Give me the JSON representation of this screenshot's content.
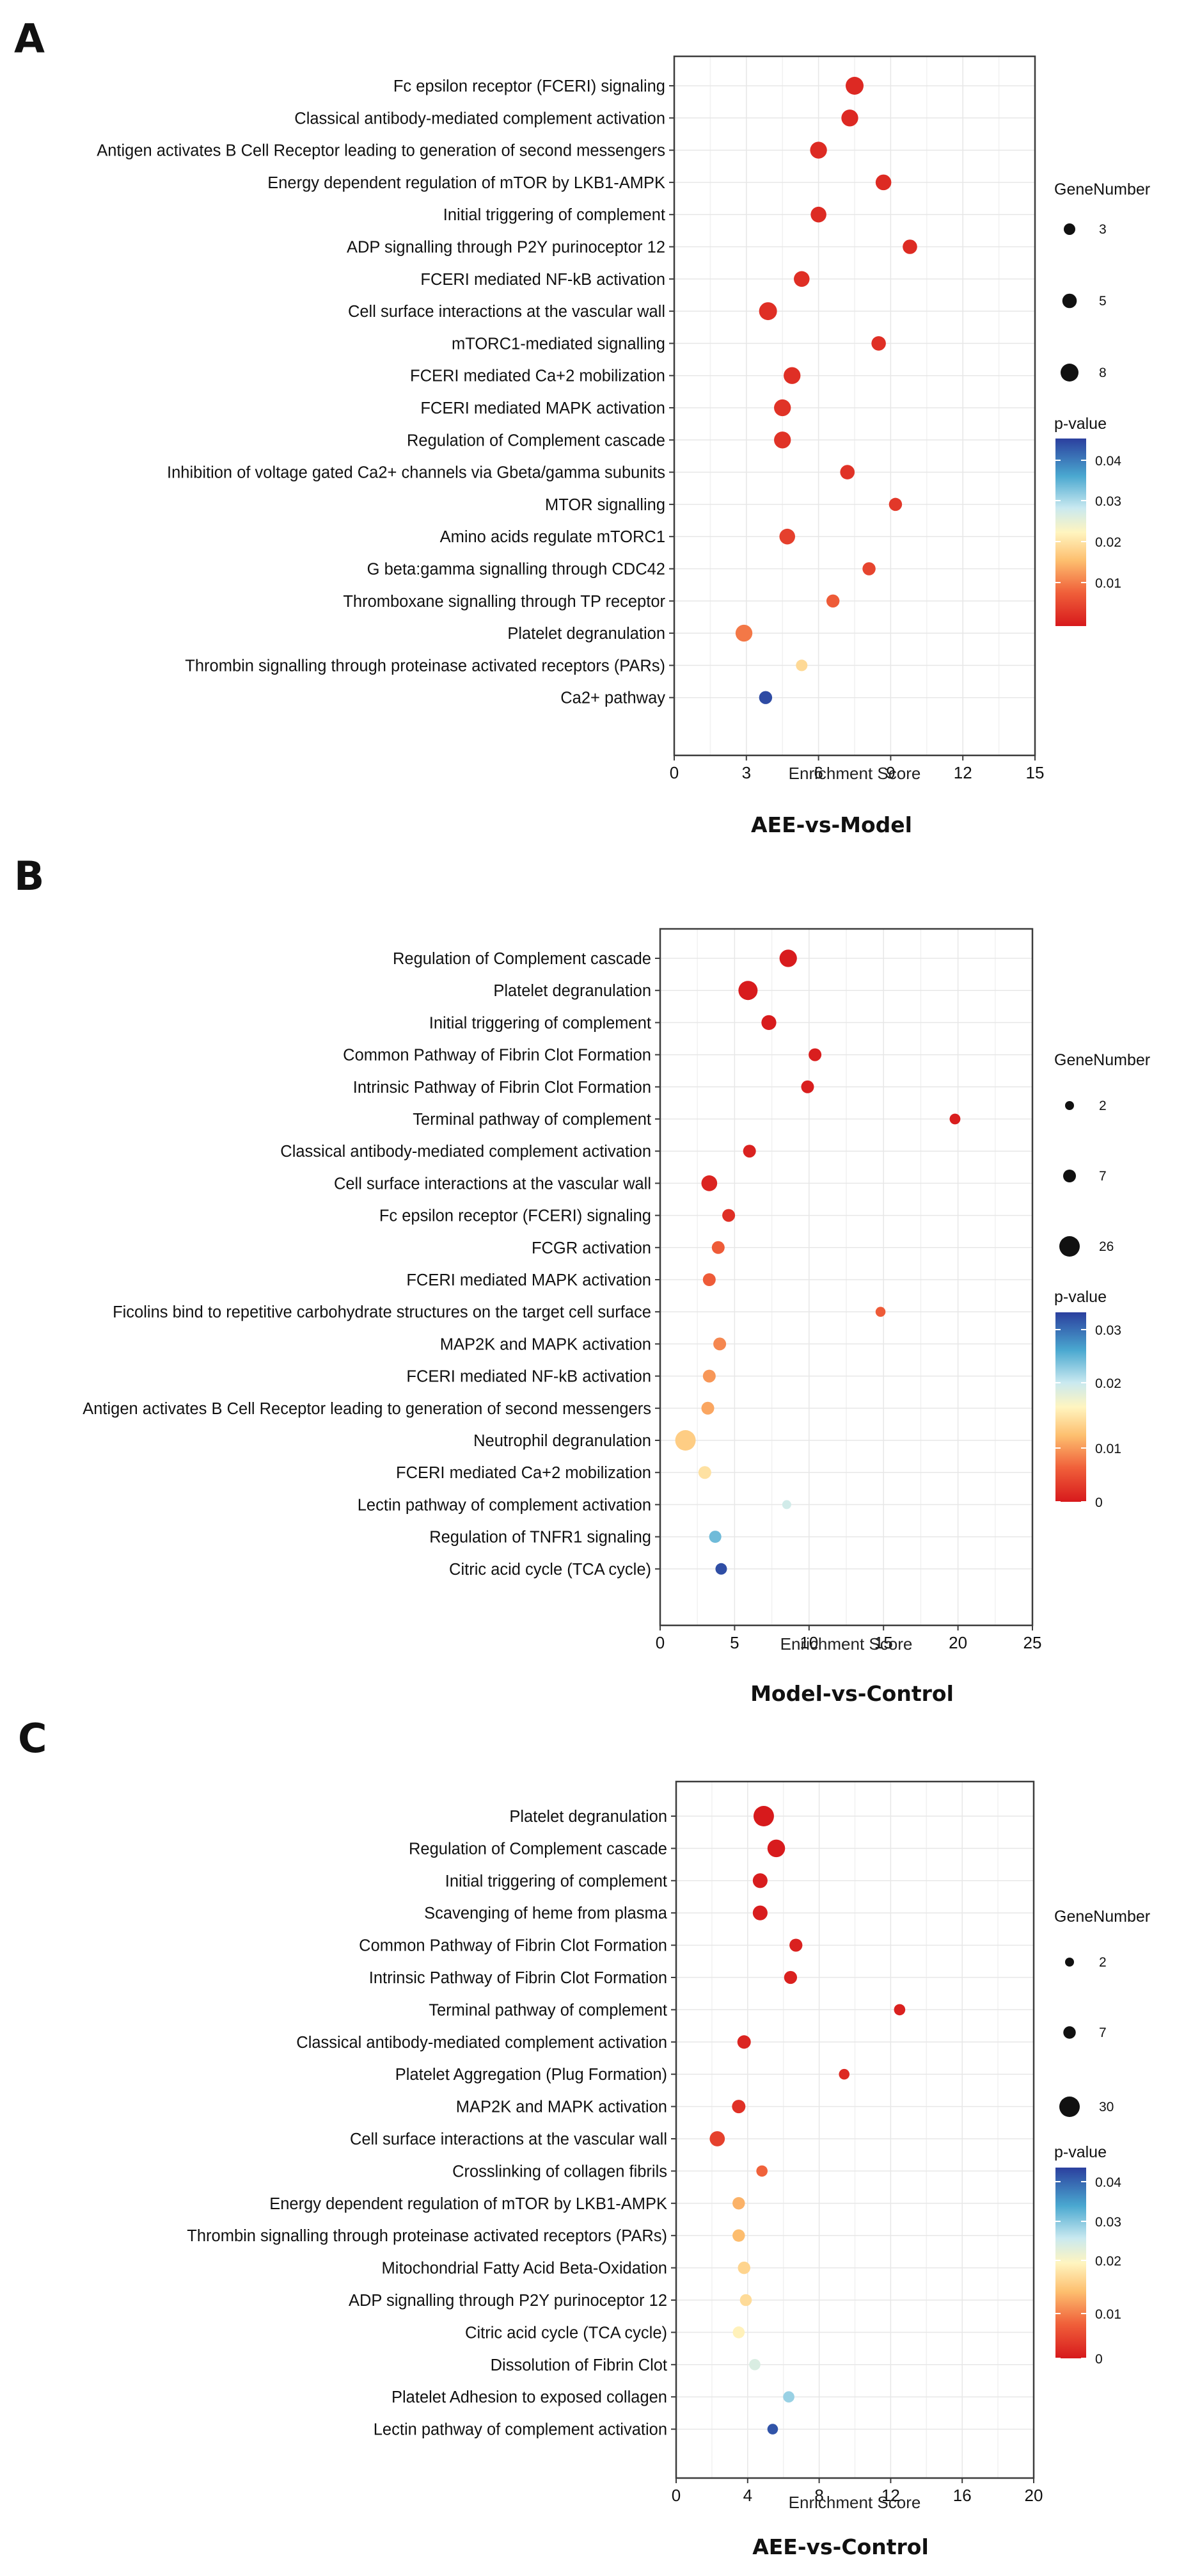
{
  "chart_data": [
    {
      "type": "scatter",
      "panel_label": "A",
      "title": "AEE-vs-Model",
      "xlabel": "Enrichment Score",
      "xlim": [
        0,
        15
      ],
      "xticks": [
        "0",
        "3",
        "6",
        "9",
        "12",
        "15"
      ],
      "size_legend_title": "GeneNumber",
      "size_legend": [
        {
          "label": "3",
          "value": 3
        },
        {
          "label": "5",
          "value": 5
        },
        {
          "label": "8",
          "value": 8
        }
      ],
      "color_legend_title": "p-value",
      "color_ticks": [
        "0.04",
        "0.03",
        "0.02",
        "0.01"
      ],
      "pmax": 0.045,
      "points": [
        {
          "term": "Fc epsilon receptor (FCERI) signaling",
          "x": 7.5,
          "genes": 8,
          "p": 0.0018
        },
        {
          "term": "Classical antibody-mediated complement activation",
          "x": 7.3,
          "genes": 7,
          "p": 0.0018
        },
        {
          "term": "Antigen activates B Cell Receptor leading to generation of second messengers",
          "x": 6.0,
          "genes": 7,
          "p": 0.002
        },
        {
          "term": "Energy dependent regulation of mTOR by LKB1-AMPK",
          "x": 8.7,
          "genes": 6,
          "p": 0.002
        },
        {
          "term": "Initial triggering of complement",
          "x": 6.0,
          "genes": 6,
          "p": 0.002
        },
        {
          "term": "ADP signalling through P2Y purinoceptor 12",
          "x": 9.8,
          "genes": 5,
          "p": 0.002
        },
        {
          "term": "FCERI mediated NF-kB activation",
          "x": 5.3,
          "genes": 6,
          "p": 0.0025
        },
        {
          "term": "Cell surface interactions at the vascular wall",
          "x": 3.9,
          "genes": 8,
          "p": 0.0025
        },
        {
          "term": "mTORC1-mediated signalling",
          "x": 8.5,
          "genes": 5,
          "p": 0.0025
        },
        {
          "term": "FCERI mediated Ca+2 mobilization",
          "x": 4.9,
          "genes": 7,
          "p": 0.0025
        },
        {
          "term": "FCERI mediated MAPK activation",
          "x": 4.5,
          "genes": 7,
          "p": 0.003
        },
        {
          "term": "Regulation of Complement cascade",
          "x": 4.5,
          "genes": 7,
          "p": 0.003
        },
        {
          "term": "Inhibition  of voltage gated Ca2+ channels via Gbeta/gamma subunits",
          "x": 7.2,
          "genes": 5,
          "p": 0.003
        },
        {
          "term": "MTOR signalling",
          "x": 9.2,
          "genes": 4,
          "p": 0.0035
        },
        {
          "term": "Amino acids regulate mTORC1",
          "x": 4.7,
          "genes": 6,
          "p": 0.0045
        },
        {
          "term": "G beta:gamma signalling through CDC42",
          "x": 8.1,
          "genes": 4,
          "p": 0.005
        },
        {
          "term": "Thromboxane signalling through TP receptor",
          "x": 6.6,
          "genes": 4,
          "p": 0.0075
        },
        {
          "term": "Platelet degranulation",
          "x": 2.9,
          "genes": 7,
          "p": 0.01
        },
        {
          "term": "Thrombin signalling through proteinase activated receptors (PARs)",
          "x": 5.3,
          "genes": 3,
          "p": 0.019
        },
        {
          "term": "Ca2+ pathway",
          "x": 3.8,
          "genes": 4,
          "p": 0.044
        }
      ]
    },
    {
      "type": "scatter",
      "panel_label": "B",
      "title": "Model-vs-Control",
      "xlabel": "Enrichment Score",
      "xlim": [
        0,
        25
      ],
      "xticks": [
        "0",
        "5",
        "10",
        "15",
        "20",
        "25"
      ],
      "size_legend_title": "GeneNumber",
      "size_legend": [
        {
          "label": "2",
          "value": 2
        },
        {
          "label": "7",
          "value": 7
        },
        {
          "label": "26",
          "value": 26
        }
      ],
      "color_legend_title": "p-value",
      "color_ticks": [
        "0.03",
        "0.02",
        "0.01",
        "0"
      ],
      "pmax": 0.036,
      "points": [
        {
          "term": "Regulation of Complement cascade",
          "x": 8.6,
          "genes": 17,
          "p": 0.0002
        },
        {
          "term": "Platelet degranulation",
          "x": 5.9,
          "genes": 22,
          "p": 0.0002
        },
        {
          "term": "Initial triggering of complement",
          "x": 7.3,
          "genes": 11,
          "p": 0.0003
        },
        {
          "term": "Common Pathway of Fibrin Clot Formation",
          "x": 10.4,
          "genes": 7,
          "p": 0.0005
        },
        {
          "term": "Intrinsic Pathway of Fibrin Clot Formation",
          "x": 9.9,
          "genes": 7,
          "p": 0.0005
        },
        {
          "term": "Terminal pathway of complement",
          "x": 19.8,
          "genes": 4,
          "p": 0.0005
        },
        {
          "term": "Classical antibody-mediated complement activation",
          "x": 6.0,
          "genes": 7,
          "p": 0.0008
        },
        {
          "term": "Cell surface interactions at the vascular wall",
          "x": 3.3,
          "genes": 13,
          "p": 0.001
        },
        {
          "term": "Fc epsilon receptor (FCERI) signaling",
          "x": 4.6,
          "genes": 7,
          "p": 0.002
        },
        {
          "term": "FCGR activation",
          "x": 3.9,
          "genes": 7,
          "p": 0.006
        },
        {
          "term": "FCERI mediated MAPK activation",
          "x": 3.3,
          "genes": 7,
          "p": 0.006
        },
        {
          "term": "Ficolins bind to repetitive carbohydrate structures on the target cell surface",
          "x": 14.8,
          "genes": 3,
          "p": 0.006
        },
        {
          "term": "MAP2K and MAPK activation",
          "x": 4.0,
          "genes": 7,
          "p": 0.009
        },
        {
          "term": "FCERI mediated NF-kB activation",
          "x": 3.3,
          "genes": 7,
          "p": 0.01
        },
        {
          "term": "Antigen activates B Cell Receptor leading to generation of second messengers",
          "x": 3.2,
          "genes": 7,
          "p": 0.011
        },
        {
          "term": "Neutrophil degranulation",
          "x": 1.7,
          "genes": 26,
          "p": 0.014
        },
        {
          "term": "FCERI mediated Ca+2 mobilization",
          "x": 3.0,
          "genes": 7,
          "p": 0.016
        },
        {
          "term": "Lectin pathway of complement activation",
          "x": 8.5,
          "genes": 2,
          "p": 0.022
        },
        {
          "term": "Regulation of TNFR1 signaling",
          "x": 3.7,
          "genes": 6,
          "p": 0.027
        },
        {
          "term": "Citric acid cycle (TCA cycle)",
          "x": 4.1,
          "genes": 5,
          "p": 0.035
        }
      ]
    },
    {
      "type": "scatter",
      "panel_label": "C",
      "title": "AEE-vs-Control",
      "xlabel": "Enrichment Score",
      "xlim": [
        0,
        20
      ],
      "xticks": [
        "0",
        "4",
        "8",
        "12",
        "16",
        "20"
      ],
      "size_legend_title": "GeneNumber",
      "size_legend": [
        {
          "label": "2",
          "value": 2
        },
        {
          "label": "7",
          "value": 7
        },
        {
          "label": "30",
          "value": 30
        }
      ],
      "color_legend_title": "p-value",
      "color_ticks": [
        "0.04",
        "0.03",
        "0.02",
        "0.01",
        "0"
      ],
      "pmax": 0.049,
      "points": [
        {
          "term": "Platelet degranulation",
          "x": 4.9,
          "genes": 30,
          "p": 0.0001
        },
        {
          "term": "Regulation of Complement cascade",
          "x": 5.6,
          "genes": 20,
          "p": 0.0003
        },
        {
          "term": "Initial triggering of complement",
          "x": 4.7,
          "genes": 12,
          "p": 0.0005
        },
        {
          "term": "Scavenging of heme from plasma",
          "x": 4.7,
          "genes": 12,
          "p": 0.0005
        },
        {
          "term": "Common Pathway of Fibrin Clot Formation",
          "x": 6.7,
          "genes": 8,
          "p": 0.001
        },
        {
          "term": "Intrinsic Pathway of Fibrin Clot Formation",
          "x": 6.4,
          "genes": 8,
          "p": 0.001
        },
        {
          "term": "Terminal pathway of complement",
          "x": 12.5,
          "genes": 5,
          "p": 0.001
        },
        {
          "term": "Classical antibody-mediated complement activation",
          "x": 3.8,
          "genes": 9,
          "p": 0.0015
        },
        {
          "term": "Platelet Aggregation (Plug Formation)",
          "x": 9.4,
          "genes": 4,
          "p": 0.002
        },
        {
          "term": "MAP2K and MAPK activation",
          "x": 3.5,
          "genes": 9,
          "p": 0.003
        },
        {
          "term": "Cell surface interactions at the vascular wall",
          "x": 2.3,
          "genes": 13,
          "p": 0.005
        },
        {
          "term": "Crosslinking of collagen fibrils",
          "x": 4.8,
          "genes": 5,
          "p": 0.009
        },
        {
          "term": "Energy dependent regulation of mTOR by LKB1-AMPK",
          "x": 3.5,
          "genes": 7,
          "p": 0.016
        },
        {
          "term": "Thrombin signalling through proteinase activated receptors (PARs)",
          "x": 3.5,
          "genes": 7,
          "p": 0.017
        },
        {
          "term": "Mitochondrial Fatty Acid Beta-Oxidation",
          "x": 3.8,
          "genes": 7,
          "p": 0.02
        },
        {
          "term": "ADP signalling through P2Y purinoceptor 12",
          "x": 3.9,
          "genes": 6,
          "p": 0.021
        },
        {
          "term": "Citric acid cycle (TCA cycle)",
          "x": 3.5,
          "genes": 6,
          "p": 0.024
        },
        {
          "term": "Dissolution of Fibrin Clot",
          "x": 4.4,
          "genes": 5,
          "p": 0.029
        },
        {
          "term": "Platelet Adhesion to exposed collagen",
          "x": 6.3,
          "genes": 5,
          "p": 0.034
        },
        {
          "term": "Lectin pathway of complement activation",
          "x": 5.4,
          "genes": 4,
          "p": 0.047
        }
      ]
    }
  ]
}
